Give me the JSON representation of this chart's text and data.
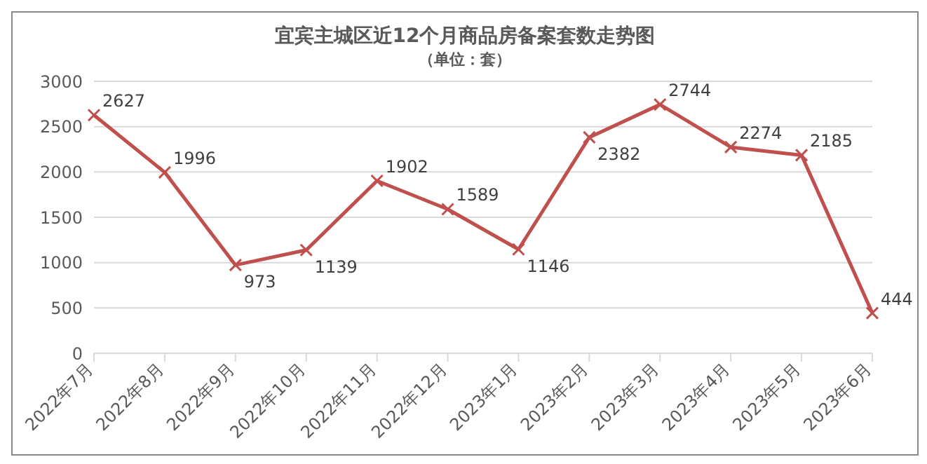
{
  "chart_data": {
    "type": "line",
    "title": "宜宾主城区近12个月商品房备案套数走势图",
    "subtitle": "（单位：套）",
    "categories": [
      "2022年7月",
      "2022年8月",
      "2022年9月",
      "2022年10月",
      "2022年11月",
      "2022年12月",
      "2023年1月",
      "2023年2月",
      "2023年3月",
      "2023年4月",
      "2023年5月",
      "2023年6月"
    ],
    "series": [
      {
        "color": "#c0504d",
        "values": [
          2627,
          1996,
          973,
          1139,
          1902,
          1589,
          1146,
          2382,
          2744,
          2274,
          2185,
          444
        ]
      }
    ],
    "ylim": [
      0,
      3000
    ],
    "yticks": [
      0,
      500,
      1000,
      1500,
      2000,
      2500,
      3000
    ],
    "grid": "y",
    "marker": "cross",
    "line_style": "solid",
    "data_labels": true,
    "legend": false
  }
}
